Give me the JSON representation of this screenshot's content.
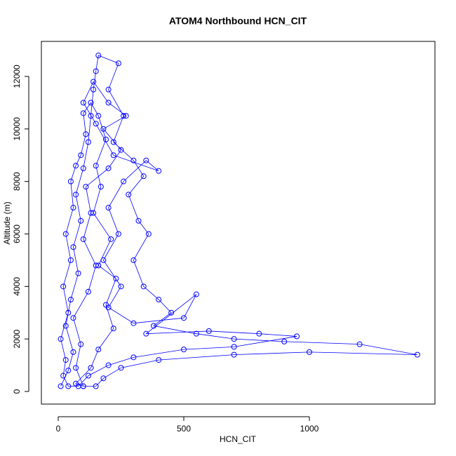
{
  "chart_data": {
    "type": "scatter_line",
    "title": "ATOM4 Northbound HCN_CIT",
    "x_label": "HCN_CIT",
    "y_label": "Altitude (m)",
    "color": "#0000ff",
    "xlim": [
      -67,
      1500
    ],
    "ylim": [
      -481,
      13335
    ],
    "xticks": [
      0,
      500,
      1000
    ],
    "yticks": [
      0,
      2000,
      4000,
      6000,
      8000,
      10000,
      12000
    ],
    "x": [
      10,
      40,
      60,
      30,
      50,
      80,
      60,
      90,
      70,
      100,
      120,
      130,
      140,
      150,
      160,
      240,
      200,
      260,
      220,
      300,
      340,
      280,
      320,
      360,
      300,
      340,
      400,
      450,
      380,
      550,
      700,
      900,
      1200,
      1430,
      1000,
      700,
      400,
      250,
      180,
      150,
      100,
      70,
      90,
      60,
      120,
      150,
      100,
      130,
      110,
      200,
      250,
      180,
      270,
      200,
      140,
      100,
      150,
      220,
      400,
      350,
      260,
      200,
      240,
      180,
      250,
      200,
      300,
      500,
      550,
      350,
      600,
      800,
      950,
      700,
      500,
      300,
      200,
      120,
      80,
      40,
      20,
      30,
      10,
      40,
      20,
      50,
      30,
      60,
      50,
      70,
      90,
      110,
      100,
      130,
      160,
      190,
      150,
      170,
      140,
      210,
      160,
      230,
      190,
      220,
      160,
      130,
      70,
      100
    ],
    "y": [
      200,
      800,
      1500,
      2500,
      3500,
      4500,
      5500,
      6500,
      7500,
      8500,
      9500,
      10500,
      11500,
      12200,
      12800,
      12500,
      11500,
      10500,
      9500,
      8800,
      8200,
      7500,
      6500,
      6000,
      5000,
      4000,
      3500,
      3000,
      2500,
      2200,
      2000,
      1900,
      1800,
      1400,
      1500,
      1400,
      1200,
      900,
      500,
      200,
      200,
      900,
      1800,
      2800,
      3800,
      4800,
      5800,
      6800,
      7800,
      8500,
      9200,
      10000,
      10500,
      11000,
      11800,
      11000,
      10200,
      9000,
      8400,
      8800,
      8000,
      7000,
      6000,
      5000,
      4000,
      3200,
      2600,
      2800,
      3700,
      2200,
      2300,
      2200,
      2100,
      1700,
      1600,
      1300,
      1000,
      600,
      200,
      200,
      600,
      1200,
      2000,
      3000,
      4000,
      5000,
      6000,
      7000,
      8000,
      8600,
      9000,
      9800,
      10600,
      11000,
      10500,
      9600,
      8600,
      7800,
      6800,
      5800,
      4800,
      4300,
      3300,
      2400,
      1600,
      900,
      300,
      200
    ]
  }
}
